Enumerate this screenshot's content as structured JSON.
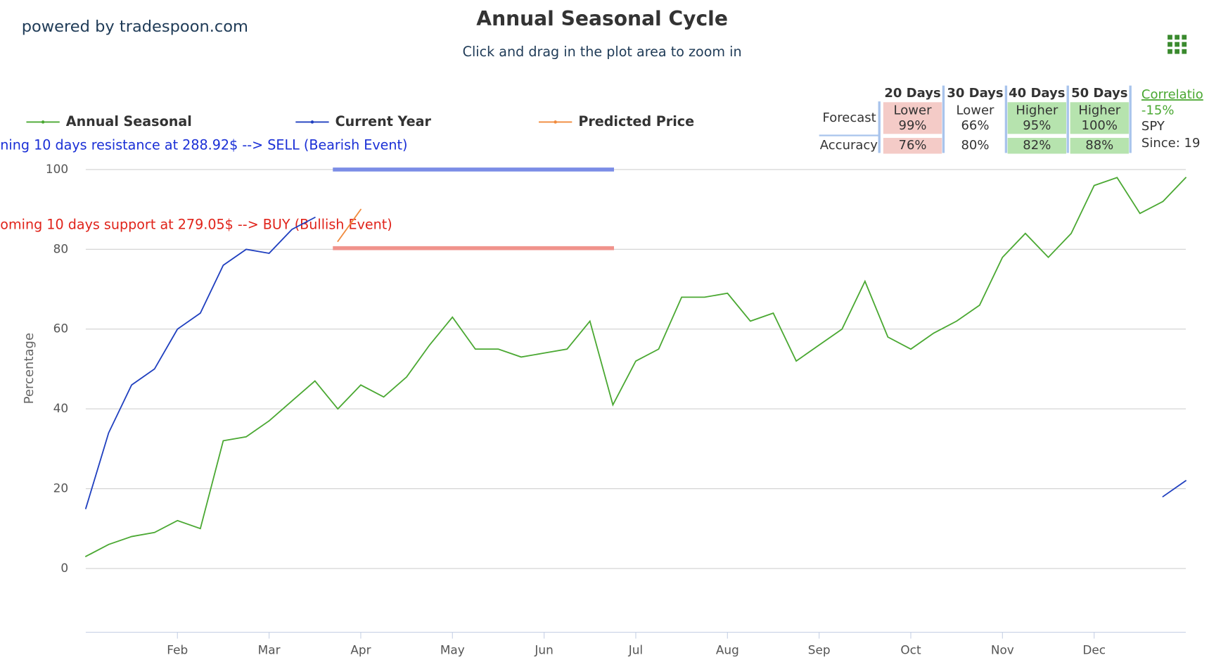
{
  "header": {
    "brand": "powered by tradespoon.com"
  },
  "chart_data": {
    "type": "line",
    "title": "Annual Seasonal Cycle",
    "subtitle": "Click and drag in the plot area to zoom in",
    "y_label": "Percentage",
    "categories": [
      null,
      null,
      null,
      null,
      "Feb",
      null,
      null,
      null,
      "Mar",
      null,
      null,
      null,
      "Apr",
      null,
      null,
      null,
      "May",
      null,
      null,
      null,
      "Jun",
      null,
      null,
      null,
      "Jul",
      null,
      null,
      null,
      "Aug",
      null,
      null,
      null,
      "Sep",
      null,
      null,
      null,
      "Oct",
      null,
      null,
      null,
      "Nov",
      null,
      null,
      null,
      "Dec",
      null,
      null,
      null,
      null
    ],
    "series": [
      {
        "name": "Annual Seasonal",
        "color": "#4aa832",
        "values": [
          3,
          6,
          8,
          9,
          12,
          10,
          32,
          33,
          37,
          42,
          47,
          40,
          46,
          43,
          48,
          56,
          63,
          55,
          55,
          53,
          54,
          55,
          62,
          41,
          52,
          55,
          68,
          68,
          69,
          62,
          64,
          52,
          56,
          60,
          72,
          58,
          55,
          59,
          62,
          66,
          78,
          84,
          78,
          84,
          96,
          98,
          89,
          92,
          98
        ]
      },
      {
        "name": "Current Year",
        "color": "#1f3fbf",
        "values": [
          15,
          34,
          46,
          50,
          60,
          64,
          76,
          80,
          79,
          85,
          88,
          null,
          null,
          null,
          null,
          null,
          null,
          null,
          null,
          null,
          null,
          null,
          null,
          null,
          null,
          null,
          null,
          null,
          null,
          null,
          null,
          null,
          null,
          null,
          null,
          null,
          null,
          null,
          null,
          null,
          null,
          null,
          null,
          null,
          null,
          null,
          null,
          18,
          22
        ]
      },
      {
        "name": "Predicted Price",
        "color": "#f08a3c",
        "values": [
          null,
          null,
          null,
          null,
          null,
          null,
          null,
          null,
          null,
          null,
          null,
          82,
          90,
          null,
          null,
          null,
          null,
          null,
          null,
          null,
          null,
          null,
          null,
          null,
          null,
          null,
          null,
          null,
          null,
          null,
          null,
          null,
          null,
          null,
          null,
          null,
          null,
          null,
          null,
          null,
          null,
          null,
          null,
          null,
          null,
          null,
          null,
          null,
          null
        ]
      }
    ],
    "reference_lines": [
      {
        "label": "ning 10 days resistance at 288.92$ --> SELL (Bearish Event)",
        "value": 100,
        "color": "#7b8de6",
        "text_color": "#1a2fd6"
      },
      {
        "label": "oming 10 days support at 279.05$ --> BUY (Bullish Event)",
        "value": 80.3,
        "color": "#f0938c",
        "text_color": "#e0231a"
      }
    ],
    "ylim": [
      -16,
      100
    ],
    "yticks": [
      0,
      20,
      40,
      60,
      80,
      100
    ],
    "grid": true
  },
  "forecast_table": {
    "columns": [
      "20 Days",
      "30 Days",
      "40 Days",
      "50 Days"
    ],
    "row_labels": [
      "Forecast",
      "Accuracy"
    ],
    "forecast": [
      [
        "Lower",
        "99%"
      ],
      [
        "Lower",
        "66%"
      ],
      [
        "Higher",
        "95%"
      ],
      [
        "Higher",
        "100%"
      ]
    ],
    "accuracy": [
      "76%",
      "80%",
      "82%",
      "88%"
    ],
    "colors": [
      "#f4cbc7",
      "#ffffff",
      "#b6e3ae",
      "#b6e3ae"
    ]
  },
  "correlation": {
    "title": "Correlatio",
    "value": "-15%",
    "symbol": "SPY",
    "since": "Since: 19"
  }
}
